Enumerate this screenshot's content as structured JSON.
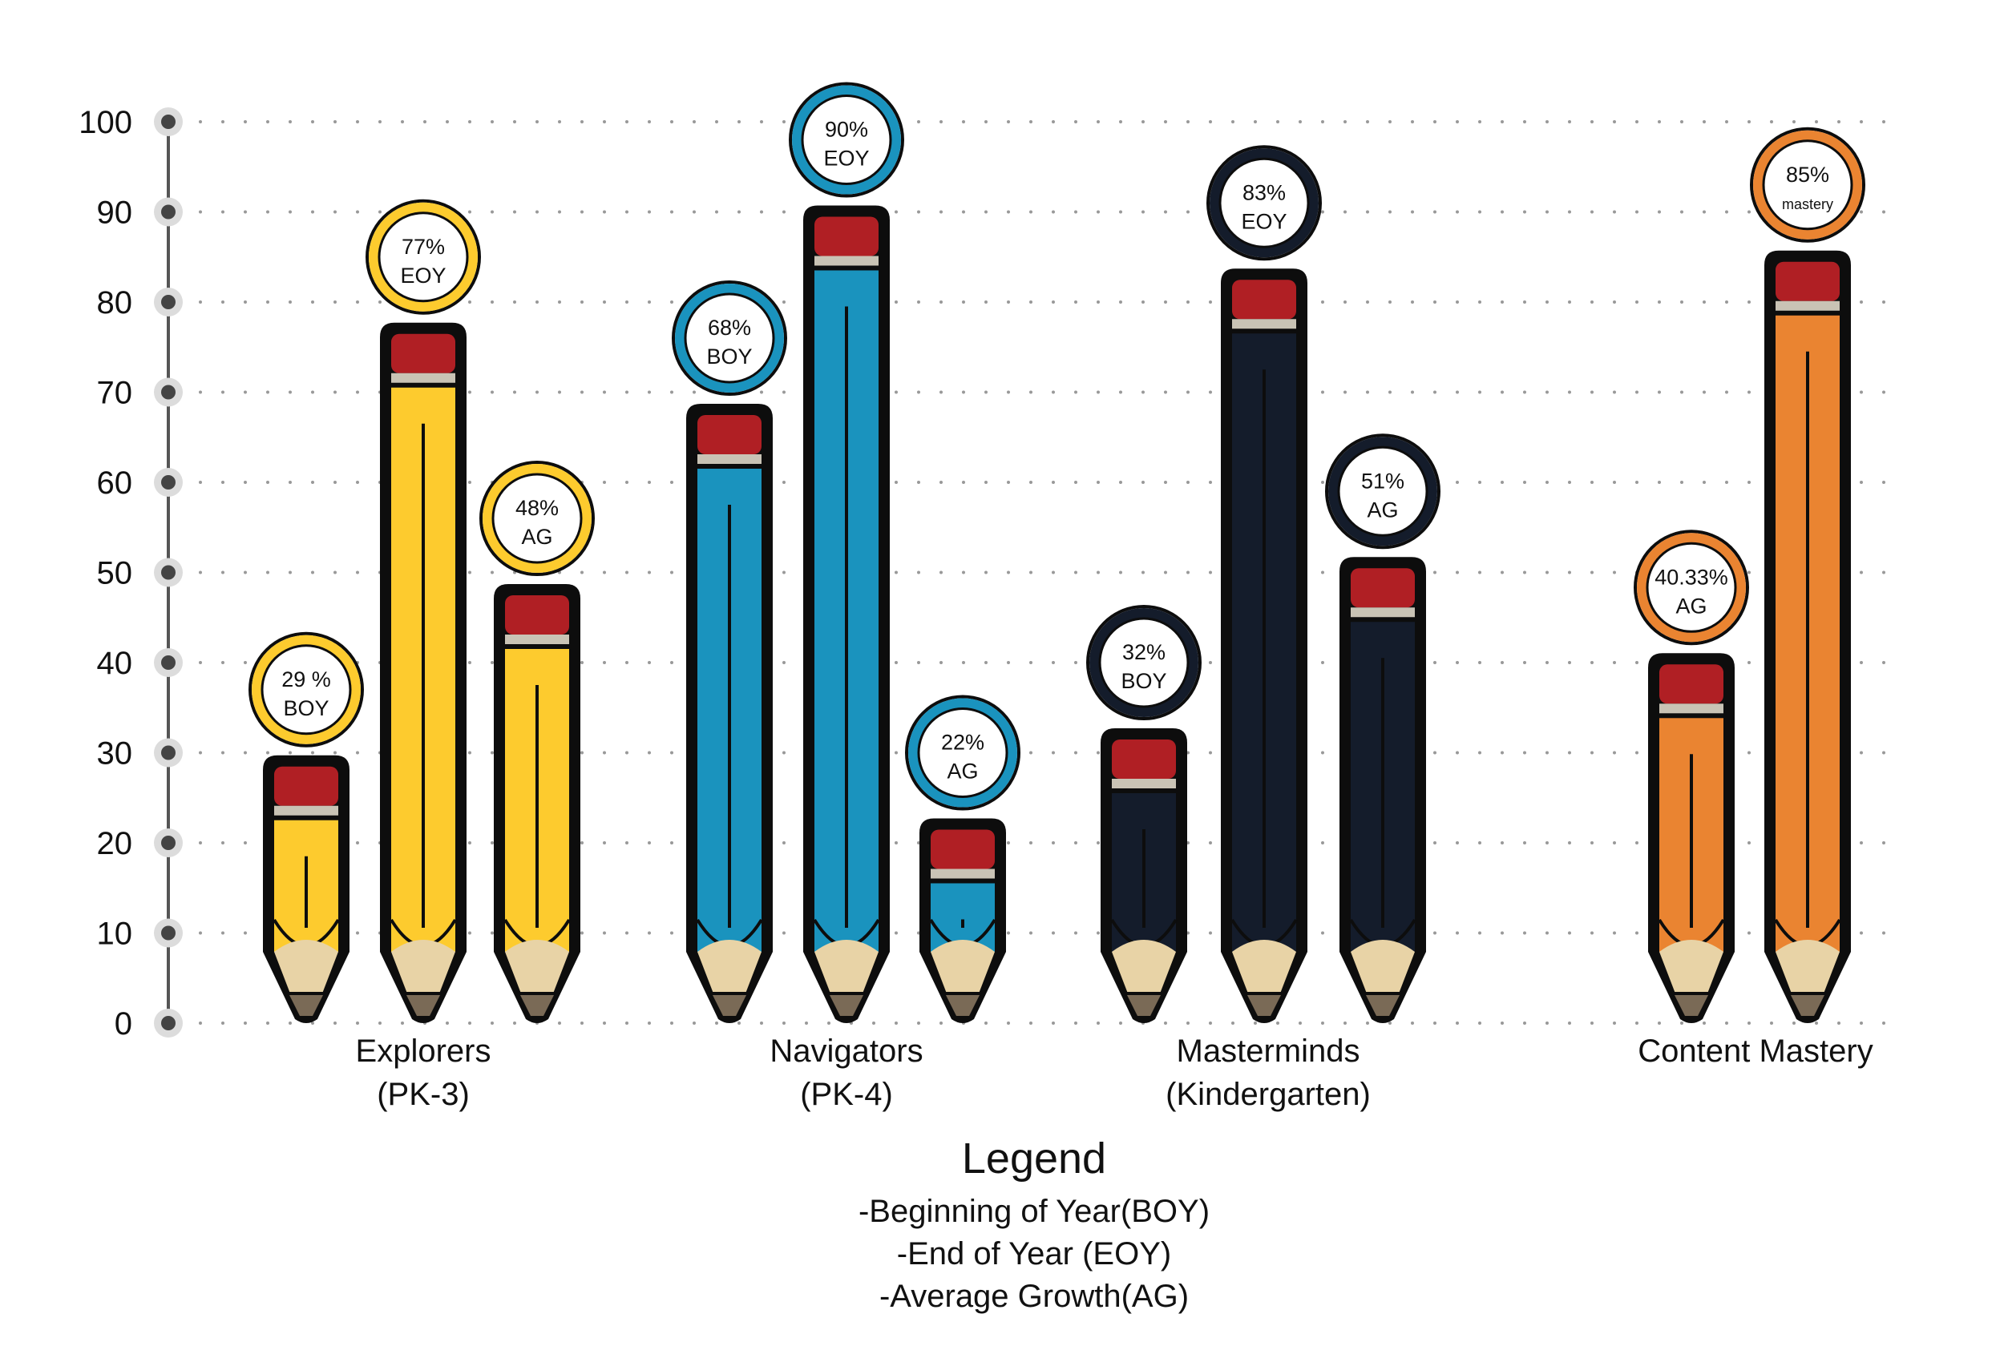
{
  "chart_data": {
    "type": "bar",
    "ylim": [
      0,
      100
    ],
    "yticks": [
      "0",
      "10",
      "20",
      "30",
      "40",
      "50",
      "60",
      "70",
      "80",
      "90",
      "100"
    ],
    "grid": true,
    "groups": [
      {
        "label_lines": [
          "Explorers",
          "(PK-3)"
        ],
        "color": "#FDCB2E",
        "bars": [
          {
            "value": 29,
            "badge_value": "29 %",
            "badge_tag": "BOY"
          },
          {
            "value": 77,
            "badge_value": "77%",
            "badge_tag": "EOY"
          },
          {
            "value": 48,
            "badge_value": "48%",
            "badge_tag": "AG"
          }
        ]
      },
      {
        "label_lines": [
          "Navigators",
          "(PK-4)"
        ],
        "color": "#1A93BE",
        "bars": [
          {
            "value": 68,
            "badge_value": "68%",
            "badge_tag": "BOY"
          },
          {
            "value": 90,
            "badge_value": "90%",
            "badge_tag": "EOY"
          },
          {
            "value": 22,
            "badge_value": "22%",
            "badge_tag": "AG"
          }
        ]
      },
      {
        "label_lines": [
          "Masterminds",
          "(Kindergarten)"
        ],
        "color": "#141C2B",
        "bars": [
          {
            "value": 32,
            "badge_value": "32%",
            "badge_tag": "BOY"
          },
          {
            "value": 83,
            "badge_value": "83%",
            "badge_tag": "EOY"
          },
          {
            "value": 51,
            "badge_value": "51%",
            "badge_tag": "AG"
          }
        ]
      },
      {
        "label_lines": [
          "Content Mastery"
        ],
        "color": "#EA8431",
        "bars": [
          {
            "value": 40.33,
            "badge_value": "40.33%",
            "badge_tag": "AG"
          },
          {
            "value": 85,
            "badge_value": "85%",
            "badge_tag": "mastery"
          }
        ]
      }
    ]
  },
  "legend": {
    "title": "Legend",
    "lines": [
      "-Beginning of Year(BOY)",
      "-End of Year (EOY)",
      "-Average Growth(AG)"
    ]
  }
}
